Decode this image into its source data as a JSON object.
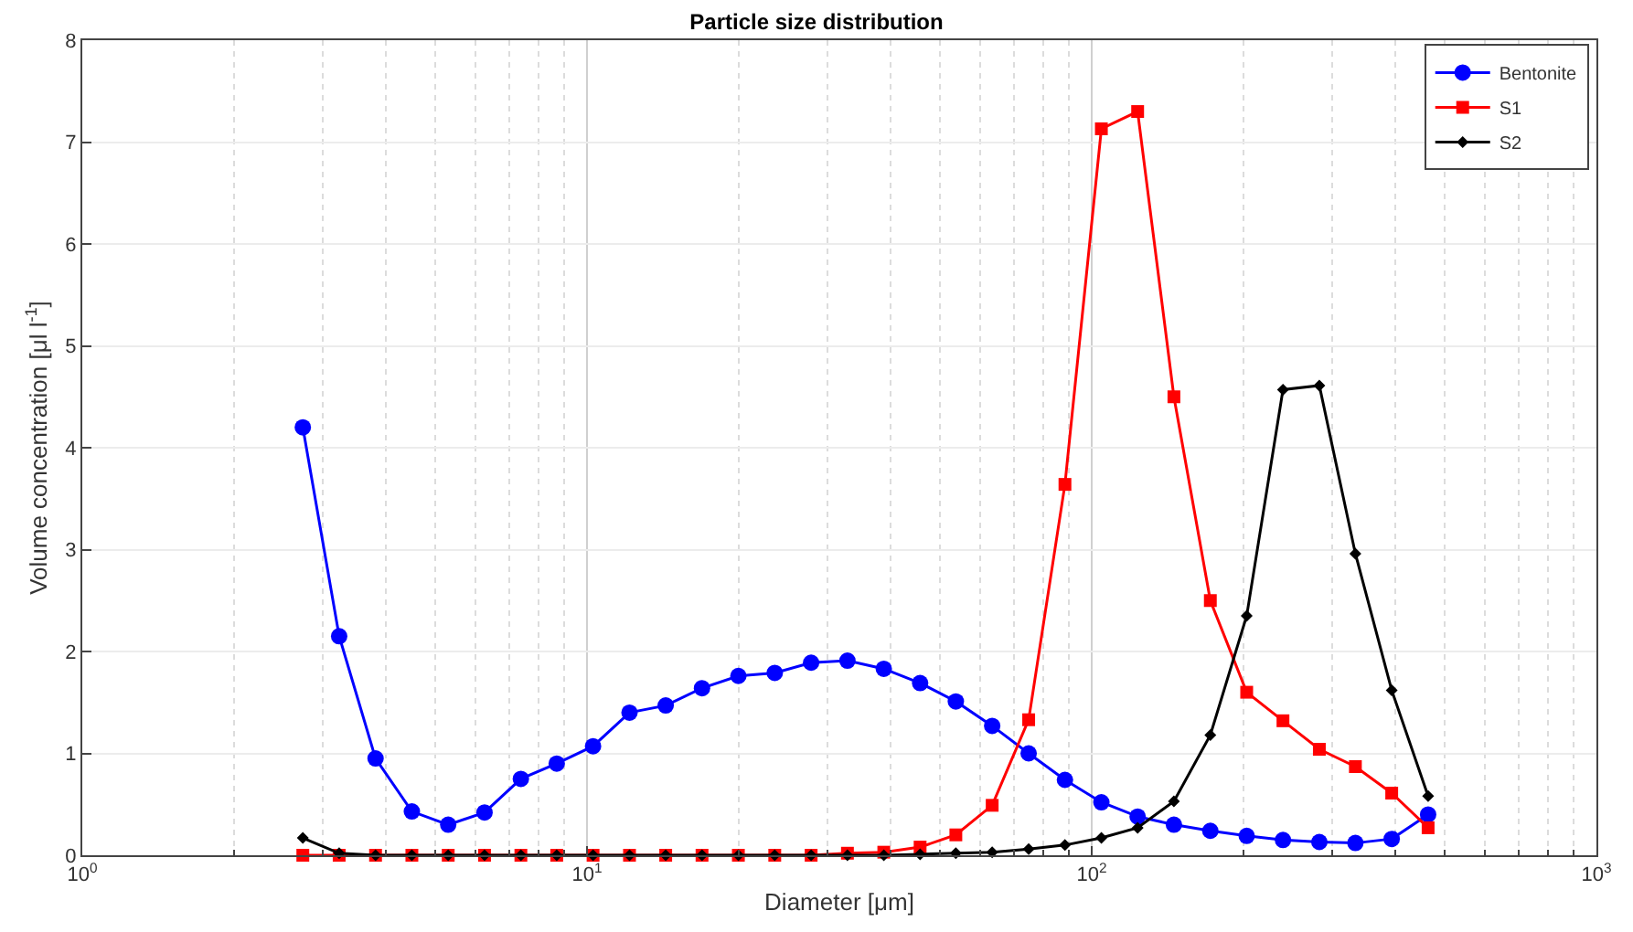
{
  "chart_data": {
    "type": "line",
    "title": "Particle size distribution",
    "xlabel": "Diameter [μm]",
    "ylabel": "Volume concentration [μl l$^{-1}$]",
    "x": [
      2.735,
      3.228,
      3.811,
      4.498,
      5.309,
      6.266,
      7.396,
      8.71,
      10.28,
      12.14,
      14.32,
      16.9,
      19.95,
      23.55,
      27.8,
      32.81,
      38.73,
      45.71,
      53.8,
      63.5,
      75.0,
      88.5,
      104.5,
      123.3,
      145.5,
      171.8,
      202.8,
      239.3,
      282.5,
      333,
      393,
      464
    ],
    "series": [
      {
        "name": "Bentonite",
        "color": "#0000ff",
        "marker": "circle",
        "values": [
          4.2,
          2.15,
          0.95,
          0.43,
          0.3,
          0.42,
          0.75,
          0.9,
          1.07,
          1.4,
          1.47,
          1.64,
          1.76,
          1.79,
          1.89,
          1.91,
          1.83,
          1.69,
          1.51,
          1.27,
          1.0,
          0.74,
          0.52,
          0.38,
          0.3,
          0.24,
          0.19,
          0.15,
          0.13,
          0.12,
          0.16,
          0.4
        ]
      },
      {
        "name": "S1",
        "color": "#ff0000",
        "marker": "square",
        "values": [
          0,
          0,
          0,
          0,
          0,
          0,
          0,
          0,
          0,
          0,
          0,
          0,
          0,
          0,
          0,
          0.02,
          0.03,
          0.08,
          0.2,
          0.49,
          1.33,
          3.64,
          7.13,
          7.3,
          4.5,
          2.5,
          1.6,
          1.32,
          1.04,
          0.87,
          0.61,
          0.27
        ]
      },
      {
        "name": "S2",
        "color": "#000000",
        "marker": "diamond",
        "values": [
          0.17,
          0.02,
          0,
          0,
          0,
          0,
          0,
          0,
          0,
          0,
          0,
          0,
          0,
          0,
          0,
          0,
          0,
          0.01,
          0.02,
          0.03,
          0.06,
          0.1,
          0.17,
          0.27,
          0.53,
          1.18,
          2.35,
          4.57,
          4.61,
          2.96,
          1.62,
          0.58
        ]
      }
    ],
    "log": "x",
    "xlim": [
      1,
      1000
    ],
    "xticks": [
      {
        "value": 1,
        "label": "10$^{0}$"
      },
      {
        "value": 10,
        "label": "10$^{1}$"
      },
      {
        "value": 100,
        "label": "10$^{2}$"
      },
      {
        "value": 1000,
        "label": "10$^{3}$"
      }
    ],
    "ylim": [
      0,
      8
    ],
    "yticks": [
      0,
      1,
      2,
      3,
      4,
      5,
      6,
      7,
      8
    ],
    "grid": true,
    "legend": "top right",
    "line_style": "solid"
  }
}
